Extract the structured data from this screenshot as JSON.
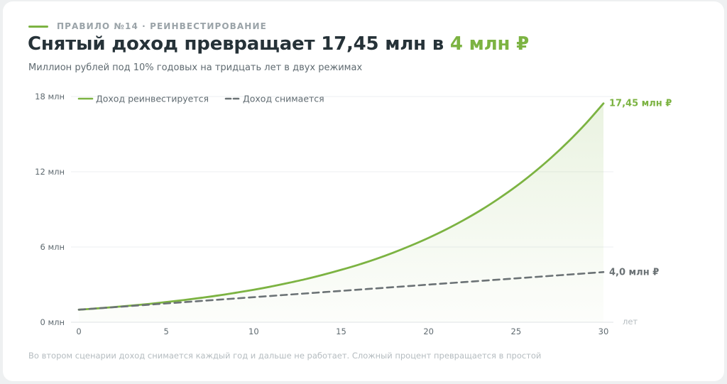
{
  "eyebrow": "ПРАВИЛО №14 · РЕИНВЕСТИРОВАНИЕ",
  "title_main": "Снятый доход превращает 17,45 млн в ",
  "title_accent": "4 млн ₽",
  "subtitle": "Миллион рублей под 10% годовых на тридцать лет в двух режимах",
  "footnote": "Во втором сценарии доход снимается каждый год и дальше не работает. Сложный процент превращается в простой",
  "colors": {
    "accent": "#7cb342",
    "secondary": "#6b7275",
    "grid": "#eceff1"
  },
  "chart_data": {
    "type": "line",
    "x_unit_label": "лет",
    "xlim": [
      0,
      30
    ],
    "ylim": [
      0,
      18
    ],
    "x_ticks": [
      {
        "value": 0,
        "label": "0"
      },
      {
        "value": 5,
        "label": "5"
      },
      {
        "value": 10,
        "label": "10"
      },
      {
        "value": 15,
        "label": "15"
      },
      {
        "value": 20,
        "label": "20"
      },
      {
        "value": 25,
        "label": "25"
      },
      {
        "value": 30,
        "label": "30"
      }
    ],
    "y_ticks": [
      {
        "value": 0,
        "label": "0 млн"
      },
      {
        "value": 6,
        "label": "6 млн"
      },
      {
        "value": 12,
        "label": "12 млн"
      },
      {
        "value": 18,
        "label": "18 млн"
      }
    ],
    "legend_position": "top-left",
    "series": [
      {
        "name": "Доход реинвестируется",
        "style": "solid",
        "color": "#7cb342",
        "filled": true,
        "end_label": "17,45 млн ₽",
        "x": [
          0,
          1,
          2,
          3,
          4,
          5,
          6,
          7,
          8,
          9,
          10,
          11,
          12,
          13,
          14,
          15,
          16,
          17,
          18,
          19,
          20,
          21,
          22,
          23,
          24,
          25,
          26,
          27,
          28,
          29,
          30
        ],
        "values": [
          1.0,
          1.1,
          1.21,
          1.33,
          1.46,
          1.61,
          1.77,
          1.95,
          2.14,
          2.36,
          2.59,
          2.85,
          3.14,
          3.45,
          3.8,
          4.18,
          4.59,
          5.05,
          5.56,
          6.12,
          6.73,
          7.4,
          8.14,
          8.95,
          9.85,
          10.83,
          11.92,
          13.11,
          14.42,
          15.86,
          17.45
        ]
      },
      {
        "name": "Доход снимается",
        "style": "dashed",
        "color": "#6b7275",
        "filled": false,
        "end_label": "4,0 млн ₽",
        "x": [
          0,
          1,
          2,
          3,
          4,
          5,
          6,
          7,
          8,
          9,
          10,
          11,
          12,
          13,
          14,
          15,
          16,
          17,
          18,
          19,
          20,
          21,
          22,
          23,
          24,
          25,
          26,
          27,
          28,
          29,
          30
        ],
        "values": [
          1.0,
          1.1,
          1.2,
          1.3,
          1.4,
          1.5,
          1.6,
          1.7,
          1.8,
          1.9,
          2.0,
          2.1,
          2.2,
          2.3,
          2.4,
          2.5,
          2.6,
          2.7,
          2.8,
          2.9,
          3.0,
          3.1,
          3.2,
          3.3,
          3.4,
          3.5,
          3.6,
          3.7,
          3.8,
          3.9,
          4.0
        ]
      }
    ]
  }
}
